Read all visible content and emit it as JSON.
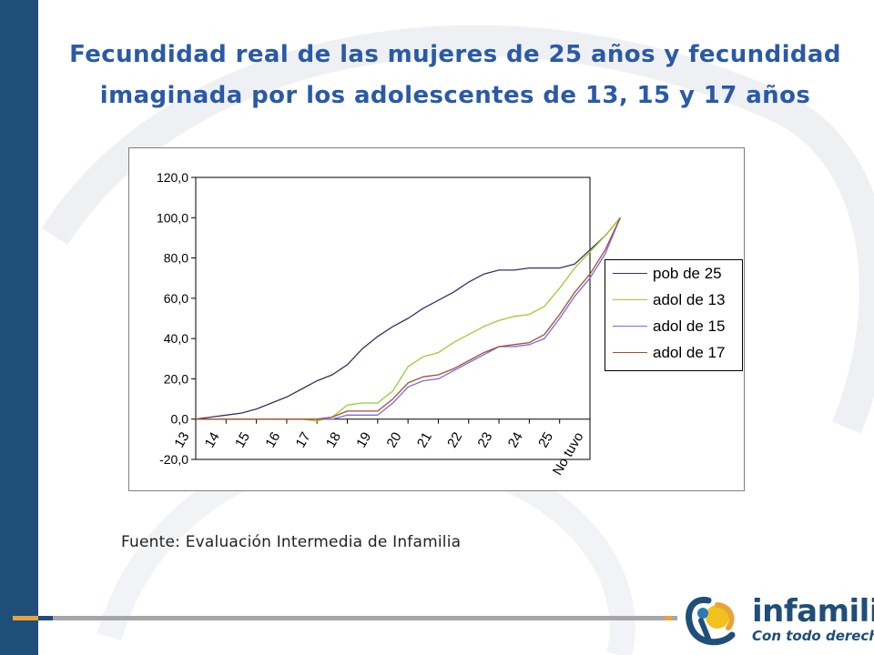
{
  "slide": {
    "title_line1": "Fecundidad real de las mujeres de 25 años y fecundidad",
    "title_line2": "imaginada por los adolescentes de 13, 15 y 17 años",
    "source": "Fuente: Evaluación Intermedia de Infamilia",
    "logo_name": "infamilia",
    "logo_tagline": "Con todo derecho",
    "colors": {
      "title": "#2a5aa6",
      "sidebar": "#1f4e79",
      "accent_orange": "#e8a33a",
      "strip_gray": "#a6a6a6"
    }
  },
  "chart_data": {
    "type": "line",
    "title": "",
    "xlabel": "",
    "ylabel": "",
    "ylim": [
      -20,
      120
    ],
    "y_ticks": [
      -20,
      0,
      20,
      40,
      60,
      80,
      100,
      120
    ],
    "y_tick_labels": [
      "-20,0",
      "0,0",
      "20,0",
      "40,0",
      "60,0",
      "80,0",
      "100,0",
      "120,0"
    ],
    "categories": [
      "13",
      "14",
      "15",
      "16",
      "17",
      "18",
      "19",
      "20",
      "21",
      "22",
      "23",
      "24",
      "25",
      "No tuvo"
    ],
    "grid": false,
    "legend_position": "right",
    "series": [
      {
        "name": "pob de 25",
        "color": "#3b2f63",
        "x": [
          0,
          0.5,
          1,
          1.5,
          2,
          2.5,
          3,
          3.5,
          4,
          4.5,
          5,
          5.5,
          6,
          6.5,
          7,
          7.5,
          8,
          8.5,
          9,
          9.5,
          10,
          10.5,
          11,
          11.5,
          12,
          12.5,
          13,
          13.5,
          14
        ],
        "values": [
          0,
          1,
          2,
          3,
          5,
          8,
          11,
          15,
          19,
          22,
          27,
          35,
          41,
          46,
          50,
          55,
          59,
          63,
          68,
          72,
          74,
          74,
          75,
          75,
          75,
          77,
          84,
          91,
          100
        ]
      },
      {
        "name": "adol de 13",
        "color": "#9acd32",
        "x": [
          0,
          0.5,
          1,
          1.5,
          2,
          2.5,
          3,
          3.5,
          4,
          4.5,
          5,
          5.5,
          6,
          6.5,
          7,
          7.5,
          8,
          8.5,
          9,
          9.5,
          10,
          10.5,
          11,
          11.5,
          12,
          12.5,
          13,
          13.5,
          14
        ],
        "values": [
          0,
          0,
          0,
          0,
          0,
          0,
          0,
          0,
          -1,
          1,
          7,
          8,
          8,
          14,
          26,
          31,
          33,
          38,
          42,
          46,
          49,
          51,
          52,
          56,
          65,
          75,
          83,
          91,
          100
        ]
      },
      {
        "name": "adol de 15",
        "color": "#7b68ee",
        "x": [
          0,
          0.5,
          1,
          1.5,
          2,
          2.5,
          3,
          3.5,
          4,
          4.5,
          5,
          5.5,
          6,
          6.5,
          7,
          7.5,
          8,
          8.5,
          9,
          9.5,
          10,
          10.5,
          11,
          11.5,
          12,
          12.5,
          13,
          13.5,
          14
        ],
        "values": [
          0,
          0,
          0,
          0,
          0,
          0,
          0,
          0,
          0,
          0,
          2,
          2,
          2,
          8,
          16,
          19,
          20,
          24,
          28,
          32,
          36,
          36,
          37,
          40,
          50,
          61,
          70,
          82,
          100
        ]
      },
      {
        "name": "adol de 17",
        "color": "#a0522d",
        "x": [
          0,
          0.5,
          1,
          1.5,
          2,
          2.5,
          3,
          3.5,
          4,
          4.5,
          5,
          5.5,
          6,
          6.5,
          7,
          7.5,
          8,
          8.5,
          9,
          9.5,
          10,
          10.5,
          11,
          11.5,
          12,
          12.5,
          13,
          13.5,
          14
        ],
        "values": [
          0,
          0,
          0,
          0,
          0,
          0,
          0,
          0,
          0,
          1,
          4,
          4,
          4,
          10,
          18,
          21,
          22,
          25,
          29,
          33,
          36,
          37,
          38,
          42,
          52,
          63,
          72,
          84,
          100
        ]
      }
    ]
  }
}
